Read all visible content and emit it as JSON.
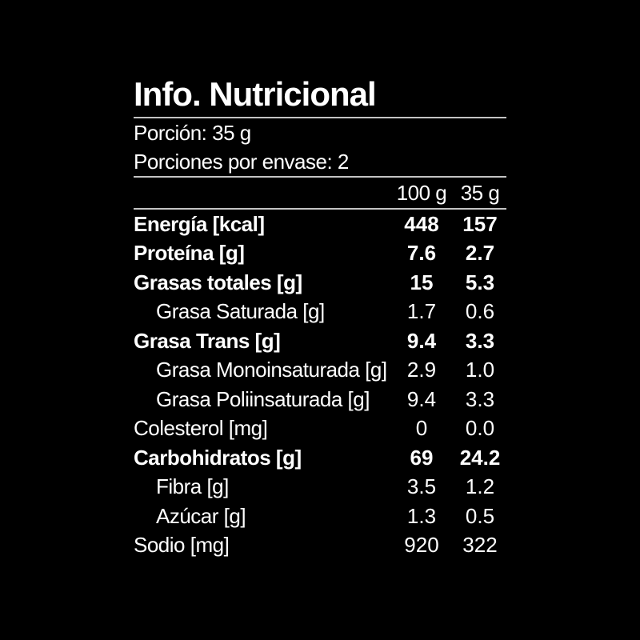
{
  "label": {
    "title": "Info. Nutricional",
    "serving": {
      "portion": "Porción: 35 g",
      "servings_per_container": "Porciones por envase: 2"
    },
    "table": {
      "columns": [
        "100 g",
        "35 g"
      ],
      "rows": [
        {
          "name": "Energía [kcal]",
          "v100": "448",
          "v35": "157",
          "bold": true,
          "indent": false
        },
        {
          "name": "Proteína [g]",
          "v100": "7.6",
          "v35": "2.7",
          "bold": true,
          "indent": false
        },
        {
          "name": "Grasas totales [g]",
          "v100": "15",
          "v35": "5.3",
          "bold": true,
          "indent": false
        },
        {
          "name": "Grasa Saturada [g]",
          "v100": "1.7",
          "v35": "0.6",
          "bold": false,
          "indent": true
        },
        {
          "name": "Grasa Trans [g]",
          "v100": "9.4",
          "v35": "3.3",
          "bold": true,
          "indent": false
        },
        {
          "name": "Grasa Monoinsaturada [g]",
          "v100": "2.9",
          "v35": "1.0",
          "bold": false,
          "indent": true
        },
        {
          "name": "Grasa Poliinsaturada [g]",
          "v100": "9.4",
          "v35": "3.3",
          "bold": false,
          "indent": true
        },
        {
          "name": "Colesterol [mg]",
          "v100": "0",
          "v35": "0.0",
          "bold": false,
          "indent": false
        },
        {
          "name": "Carbohidratos [g]",
          "v100": "69",
          "v35": "24.2",
          "bold": true,
          "indent": false
        },
        {
          "name": "Fibra [g]",
          "v100": "3.5",
          "v35": "1.2",
          "bold": false,
          "indent": true
        },
        {
          "name": "Azúcar [g]",
          "v100": "1.3",
          "v35": "0.5",
          "bold": false,
          "indent": true
        },
        {
          "name": "Sodio [mg]",
          "v100": "920",
          "v35": "322",
          "bold": false,
          "indent": false
        }
      ]
    }
  },
  "colors": {
    "background": "#000000",
    "text": "#ffffff",
    "rule": "#c3c3c3"
  }
}
